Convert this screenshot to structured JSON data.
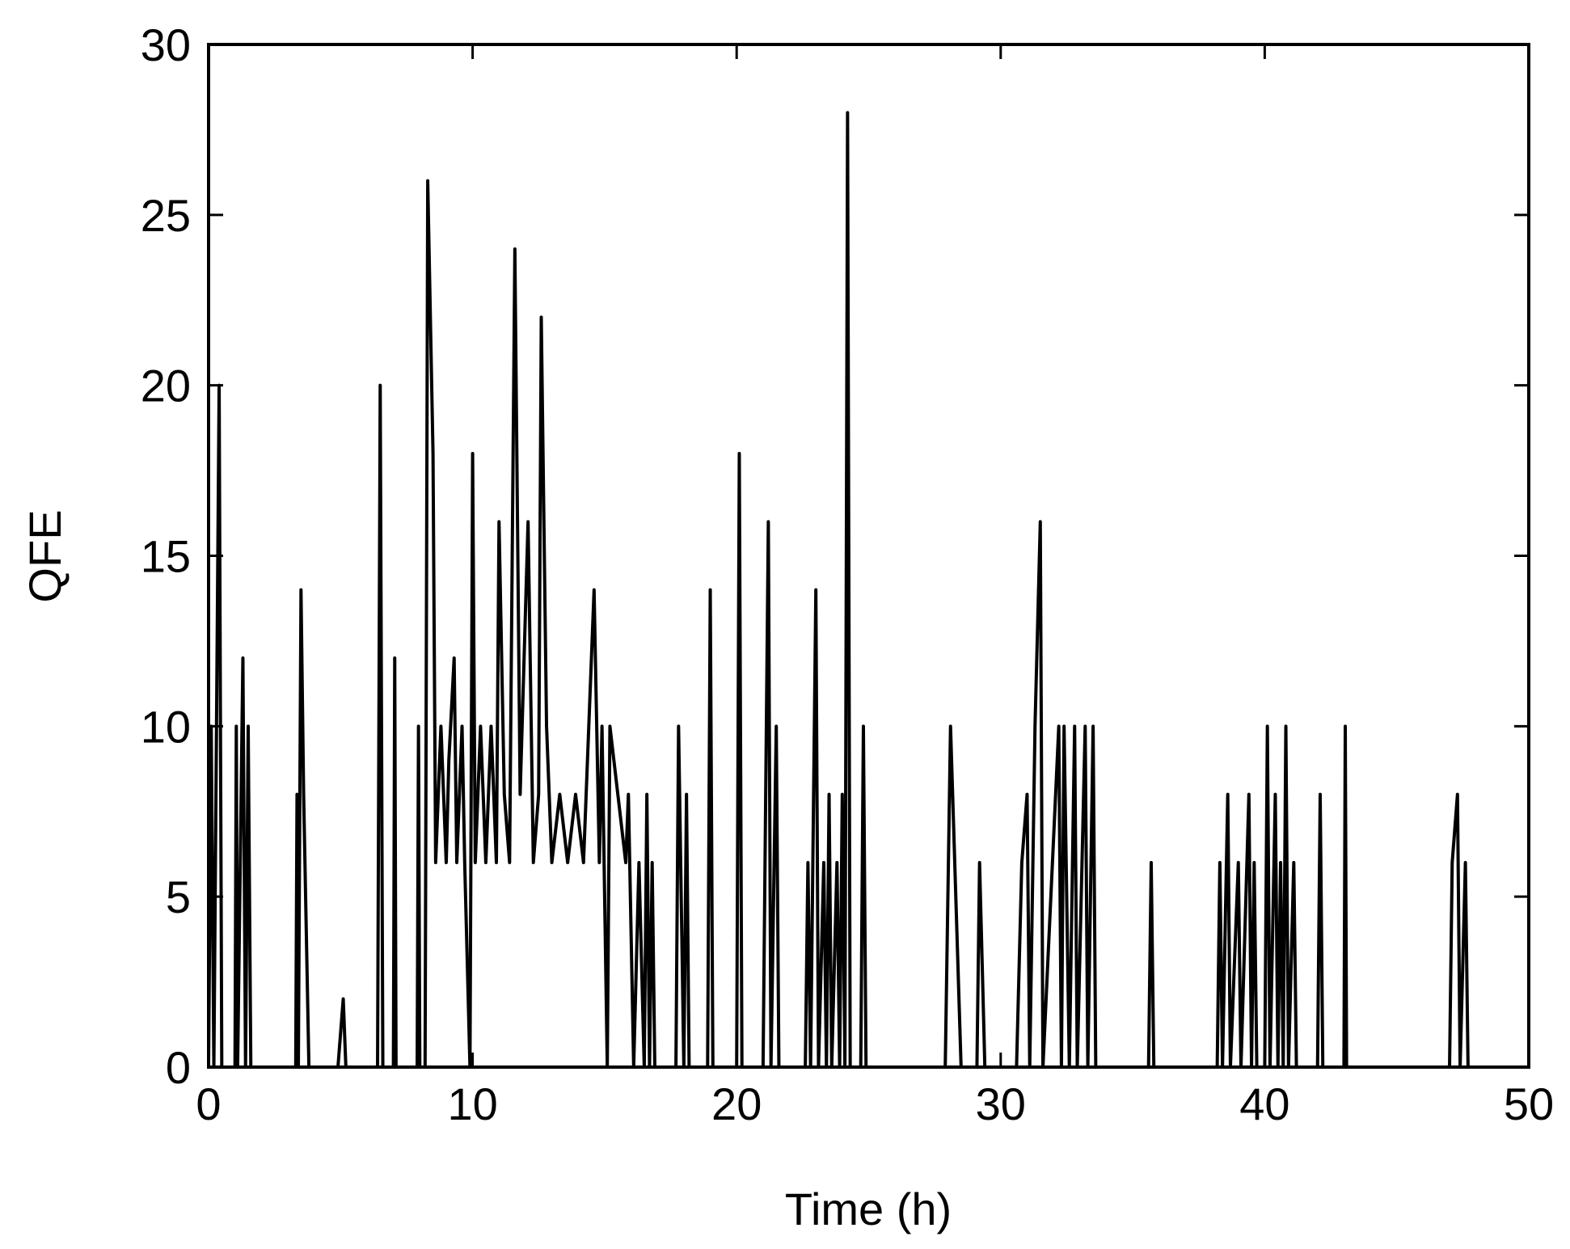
{
  "chart_data": {
    "type": "line",
    "xlabel": "Time (h)",
    "ylabel": "QFE",
    "xlim": [
      0,
      50
    ],
    "ylim": [
      0,
      30
    ],
    "xticks": [
      0,
      10,
      20,
      30,
      40,
      50
    ],
    "yticks": [
      0,
      5,
      10,
      15,
      20,
      25,
      30
    ],
    "series": [
      {
        "color": "#000000",
        "x": [
          0,
          0.1,
          0.2,
          0.4,
          0.5,
          1.0,
          1.05,
          1.1,
          1.3,
          1.4,
          1.5,
          1.6,
          3.3,
          3.35,
          3.4,
          3.5,
          3.6,
          3.8,
          4.9,
          5.1,
          5.2,
          6.4,
          6.5,
          6.6,
          7.0,
          7.05,
          7.1,
          7.9,
          7.95,
          8.0,
          8.2,
          8.3,
          8.5,
          8.6,
          8.8,
          9.0,
          9.1,
          9.3,
          9.4,
          9.6,
          9.7,
          9.9,
          10.0,
          10.1,
          10.3,
          10.5,
          10.7,
          10.9,
          11.0,
          11.2,
          11.4,
          11.6,
          11.8,
          12.1,
          12.3,
          12.5,
          12.6,
          12.8,
          13.0,
          13.3,
          13.6,
          13.9,
          14.2,
          14.4,
          14.6,
          14.8,
          14.9,
          15.1,
          15.2,
          15.5,
          15.8,
          15.9,
          16.1,
          16.3,
          16.5,
          16.6,
          16.7,
          16.8,
          16.9,
          17.7,
          17.8,
          18.0,
          18.1,
          18.2,
          18.9,
          19.0,
          19.1,
          20.0,
          20.1,
          20.2,
          21.0,
          21.1,
          21.2,
          21.3,
          21.5,
          21.6,
          22.6,
          22.7,
          22.8,
          23.0,
          23.1,
          23.3,
          23.4,
          23.5,
          23.6,
          23.8,
          23.9,
          24.0,
          24.1,
          24.2,
          24.3,
          24.7,
          24.8,
          24.9,
          27.9,
          28.1,
          28.5,
          29.1,
          29.2,
          29.4,
          30.6,
          30.8,
          31.0,
          31.1,
          31.3,
          31.5,
          31.6,
          32.2,
          32.3,
          32.4,
          32.6,
          32.8,
          32.9,
          33.2,
          33.3,
          33.5,
          33.6,
          35.6,
          35.7,
          35.8,
          38.2,
          38.3,
          38.4,
          38.6,
          38.7,
          39.0,
          39.1,
          39.4,
          39.5,
          39.6,
          39.7,
          40.0,
          40.1,
          40.2,
          40.4,
          40.5,
          40.6,
          40.7,
          40.8,
          40.9,
          41.1,
          41.2,
          42.0,
          42.1,
          42.2,
          43.0,
          43.05,
          43.1,
          47.0,
          47.1,
          47.3,
          47.4,
          47.6,
          47.7
        ],
        "values": [
          0,
          10,
          0,
          20,
          0,
          0,
          10,
          0,
          12,
          0,
          10,
          0,
          0,
          8,
          0,
          14,
          8,
          0,
          0,
          2,
          0,
          0,
          20,
          0,
          0,
          12,
          0,
          0,
          10,
          0,
          0,
          26,
          18,
          6,
          10,
          6,
          9,
          12,
          6,
          10,
          6,
          0,
          18,
          6,
          10,
          6,
          10,
          6,
          16,
          8,
          6,
          24,
          8,
          16,
          6,
          8,
          22,
          10,
          6,
          8,
          6,
          8,
          6,
          10,
          14,
          6,
          10,
          0,
          10,
          8,
          6,
          8,
          0,
          6,
          0,
          8,
          0,
          6,
          0,
          0,
          10,
          0,
          8,
          0,
          0,
          14,
          0,
          0,
          18,
          0,
          0,
          8,
          16,
          0,
          10,
          0,
          0,
          6,
          0,
          14,
          0,
          6,
          0,
          8,
          0,
          6,
          0,
          8,
          0,
          28,
          0,
          0,
          10,
          0,
          0,
          10,
          0,
          0,
          6,
          0,
          0,
          6,
          8,
          0,
          10,
          16,
          0,
          10,
          0,
          10,
          0,
          10,
          0,
          10,
          0,
          10,
          0,
          0,
          6,
          0,
          0,
          6,
          0,
          8,
          0,
          6,
          0,
          8,
          0,
          6,
          0,
          0,
          10,
          0,
          8,
          0,
          6,
          0,
          10,
          0,
          6,
          0,
          0,
          8,
          0,
          0,
          10,
          0,
          0,
          6,
          8,
          0,
          6,
          0
        ]
      }
    ]
  }
}
